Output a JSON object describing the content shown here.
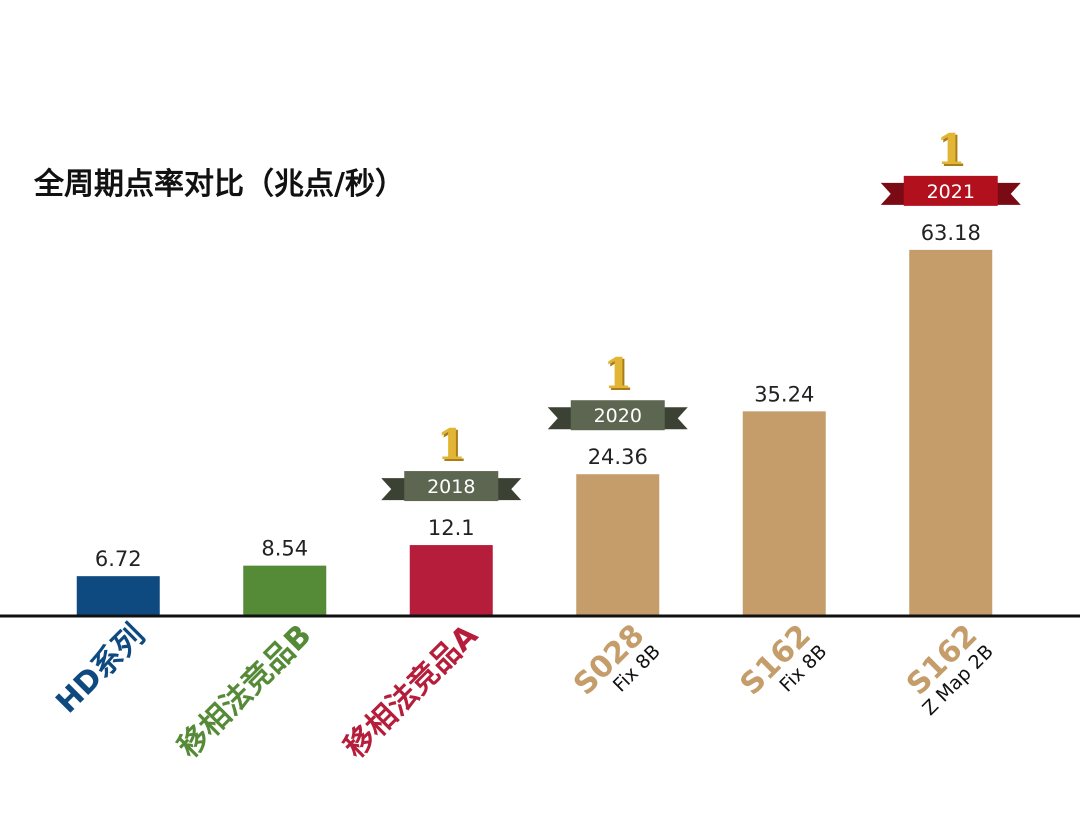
{
  "chart_data": {
    "type": "bar",
    "title": "全周期点率对比（兆点/秒）",
    "ylim": [
      0,
      70
    ],
    "grid": false,
    "categories": [
      {
        "main": "HD系列",
        "sub": "",
        "color": "#0e4a80"
      },
      {
        "main": "移相法竞品B",
        "sub": "",
        "color": "#558a37"
      },
      {
        "main": "移相法竞品A",
        "sub": "",
        "color": "#b51d3a"
      },
      {
        "main": "S028",
        "sub": "Fix 8B",
        "color": "#c49d6b"
      },
      {
        "main": "S162",
        "sub": "Fix 8B",
        "color": "#c49d6b"
      },
      {
        "main": "S162",
        "sub": "Z Map 2B",
        "color": "#c49d6b"
      }
    ],
    "values": [
      6.72,
      8.54,
      12.1,
      24.36,
      35.24,
      63.18
    ],
    "value_labels": [
      "6.72",
      "8.54",
      "12.1",
      "24.36",
      "35.24",
      "63.18"
    ],
    "awards": [
      {
        "category_index": 2,
        "rank": "1",
        "year": "2018",
        "ribbon_color": "#5c6650"
      },
      {
        "category_index": 3,
        "rank": "1",
        "year": "2020",
        "ribbon_color": "#5c6650"
      },
      {
        "category_index": 5,
        "rank": "1",
        "year": "2021",
        "ribbon_color": "#b3101d"
      }
    ],
    "colors": {
      "axis": "#111111",
      "gold": "#e2b534"
    }
  }
}
